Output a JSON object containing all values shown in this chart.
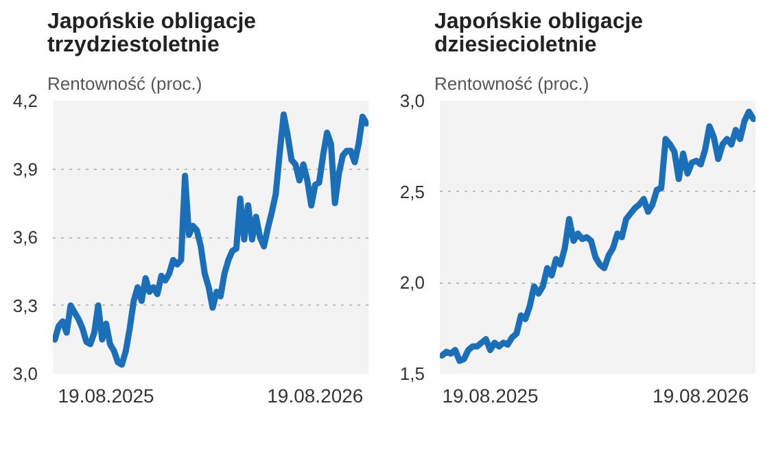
{
  "chart_data": [
    {
      "type": "line",
      "title": "Japońskie obligacje trzydziestoletnie",
      "subtitle": "Rentowność (proc.)",
      "grid": "y",
      "line_style": "solid",
      "categories": [
        null,
        null,
        null,
        null,
        null,
        null,
        null,
        null,
        null,
        null,
        null,
        null,
        null,
        "19.08.2025",
        null,
        null,
        null,
        null,
        null,
        null,
        null,
        null,
        null,
        null,
        null,
        null,
        null,
        null,
        null,
        null,
        null,
        null,
        null,
        null,
        null,
        null,
        null,
        null,
        null,
        null,
        null,
        null,
        null,
        null,
        null,
        null,
        null,
        null,
        null,
        null,
        null,
        null,
        null,
        null,
        null,
        null,
        null,
        null,
        null,
        null,
        null,
        null,
        null,
        null,
        null,
        null,
        "19.08.2026",
        null,
        null,
        null,
        null,
        null,
        null,
        null,
        null,
        null,
        null,
        null,
        null,
        null
      ],
      "ylim": [
        3.0,
        4.2
      ],
      "yticks": [
        {
          "value": 3.0,
          "label": "3,0"
        },
        {
          "value": 3.3,
          "label": "3,3"
        },
        {
          "value": 3.6,
          "label": "3,6"
        },
        {
          "value": 3.9,
          "label": "3,9"
        },
        {
          "value": 4.2,
          "label": "4,2"
        }
      ],
      "series": [
        {
          "color": "#1a6fb8",
          "values": [
            3.15,
            3.21,
            3.23,
            3.18,
            3.3,
            3.27,
            3.24,
            3.2,
            3.14,
            3.13,
            3.18,
            3.3,
            3.15,
            3.22,
            3.13,
            3.1,
            3.05,
            3.04,
            3.1,
            3.2,
            3.32,
            3.38,
            3.32,
            3.42,
            3.36,
            3.38,
            3.35,
            3.43,
            3.41,
            3.44,
            3.5,
            3.48,
            3.5,
            3.87,
            3.61,
            3.65,
            3.63,
            3.56,
            3.44,
            3.38,
            3.29,
            3.36,
            3.34,
            3.44,
            3.5,
            3.54,
            3.55,
            3.77,
            3.59,
            3.74,
            3.59,
            3.69,
            3.6,
            3.56,
            3.64,
            3.71,
            3.79,
            3.97,
            4.14,
            4.05,
            3.94,
            3.92,
            3.85,
            3.92,
            3.85,
            3.74,
            3.83,
            3.84,
            3.96,
            4.06,
            4.01,
            3.75,
            3.88,
            3.96,
            3.98,
            3.98,
            3.93,
            4.01,
            4.13,
            4.1
          ]
        }
      ]
    },
    {
      "type": "line",
      "title": "Japońskie obligacje dziesiecioletnie",
      "subtitle": "Rentowność (proc.)",
      "grid": "y",
      "line_style": "solid",
      "categories": [
        null,
        null,
        null,
        null,
        null,
        null,
        null,
        null,
        null,
        null,
        null,
        "19.08.2025",
        null,
        null,
        null,
        null,
        null,
        null,
        null,
        null,
        null,
        null,
        null,
        null,
        null,
        null,
        null,
        null,
        null,
        null,
        null,
        null,
        null,
        null,
        null,
        null,
        null,
        null,
        null,
        null,
        null,
        null,
        null,
        null,
        null,
        null,
        null,
        null,
        null,
        null,
        null,
        null,
        null,
        null,
        null,
        null,
        null,
        null,
        null,
        "19.08.2026",
        null,
        null,
        null,
        null,
        null,
        null,
        null,
        null,
        null,
        null,
        null,
        null
      ],
      "ylim": [
        1.5,
        3.0
      ],
      "yticks": [
        {
          "value": 1.5,
          "label": "1,5"
        },
        {
          "value": 2.0,
          "label": "2,0"
        },
        {
          "value": 2.5,
          "label": "2,5"
        },
        {
          "value": 3.0,
          "label": "3,0"
        }
      ],
      "series": [
        {
          "color": "#1a6fb8",
          "values": [
            1.6,
            1.62,
            1.61,
            1.63,
            1.57,
            1.58,
            1.63,
            1.65,
            1.65,
            1.67,
            1.69,
            1.63,
            1.67,
            1.65,
            1.67,
            1.66,
            1.7,
            1.72,
            1.82,
            1.8,
            1.87,
            1.98,
            1.94,
            1.98,
            2.08,
            2.04,
            2.13,
            2.1,
            2.19,
            2.35,
            2.23,
            2.27,
            2.24,
            2.25,
            2.23,
            2.14,
            2.1,
            2.08,
            2.15,
            2.19,
            2.27,
            2.25,
            2.35,
            2.38,
            2.41,
            2.43,
            2.46,
            2.39,
            2.43,
            2.51,
            2.52,
            2.79,
            2.76,
            2.72,
            2.57,
            2.71,
            2.6,
            2.66,
            2.67,
            2.65,
            2.73,
            2.86,
            2.8,
            2.68,
            2.76,
            2.79,
            2.76,
            2.84,
            2.79,
            2.89,
            2.94,
            2.9
          ]
        }
      ]
    }
  ]
}
